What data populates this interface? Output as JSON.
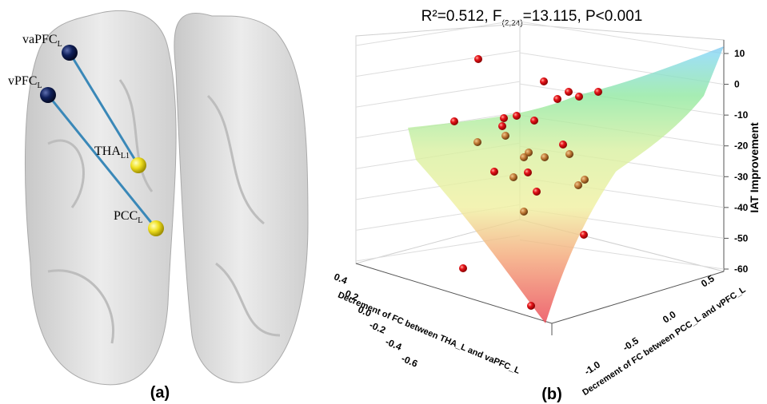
{
  "panel_a": {
    "label": "(a)",
    "nodes": [
      {
        "name": "vaPFC",
        "sub": "L"
      },
      {
        "name": "vPFC",
        "sub": "L"
      },
      {
        "name": "THA",
        "sub": "L1"
      },
      {
        "name": "PCC",
        "sub": "L"
      }
    ]
  },
  "panel_b": {
    "label": "(b)",
    "title": {
      "main": "R²=0.512, F",
      "sub": "(2,24)",
      "rest": "=13.115, P<0.001"
    },
    "z_axis_label": "IAT Improvement",
    "z_ticks": [
      "10",
      "0",
      "-10",
      "-20",
      "-30",
      "-40",
      "-50",
      "-60"
    ],
    "x_axis_label": "Decrement of FC between THA_L and vaPFC_L",
    "x_ticks": [
      "0.4",
      "0.2",
      "0.0",
      "-0.2",
      "-0.4",
      "-0.6"
    ],
    "y_axis_label": "Decrement of FC between PCC_L and vPFC_L",
    "y_ticks": [
      "0.5",
      "0.0",
      "-0.5",
      "-1.0"
    ]
  }
}
